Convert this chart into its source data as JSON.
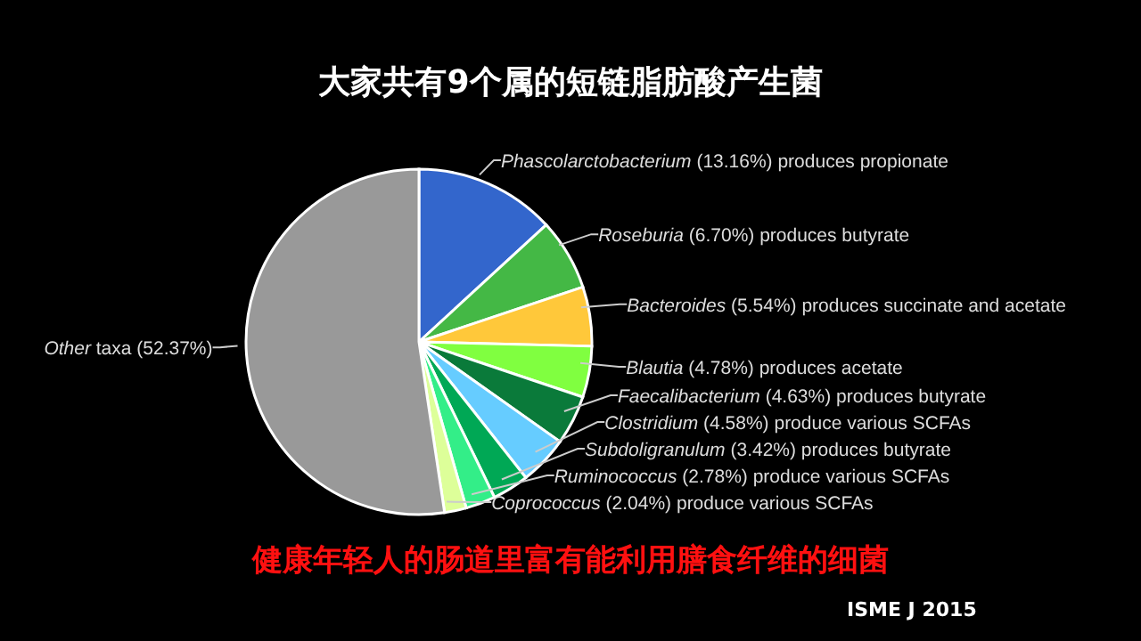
{
  "chart_data": {
    "type": "pie",
    "title": "大家共有9个属的短链脂肪酸产生菌",
    "categories": [
      "Phascolarctobacterium (13.16%) produces propionate",
      "Roseburia (6.70%) produces butyrate",
      "Bacteroides (5.54%) produces succinate and acetate",
      "Blautia (4.78%) produces acetate",
      "Faecalibacterium (4.63%) produces butyrate",
      "Clostridium (4.58%) produce various SCFAs",
      "Subdoligranulum (3.42%) produces butyrate",
      "Ruminococcus (2.78%) produce various SCFAs",
      "Coprococcus (2.04%) produce various SCFAs",
      "Other taxa (52.37%)"
    ],
    "values": [
      13.16,
      6.7,
      5.54,
      4.78,
      4.63,
      4.58,
      3.42,
      2.78,
      2.04,
      52.37
    ],
    "colors": [
      "#3366cc",
      "#44b845",
      "#ffc83a",
      "#80ff40",
      "#0a7a3a",
      "#66ccff",
      "#00a855",
      "#33ee88",
      "#ddff99",
      "#999999"
    ],
    "annotations": [
      "健康年轻人的肠道里富有能利用膳食纤维的细菌",
      "ISME J 2015"
    ]
  }
}
